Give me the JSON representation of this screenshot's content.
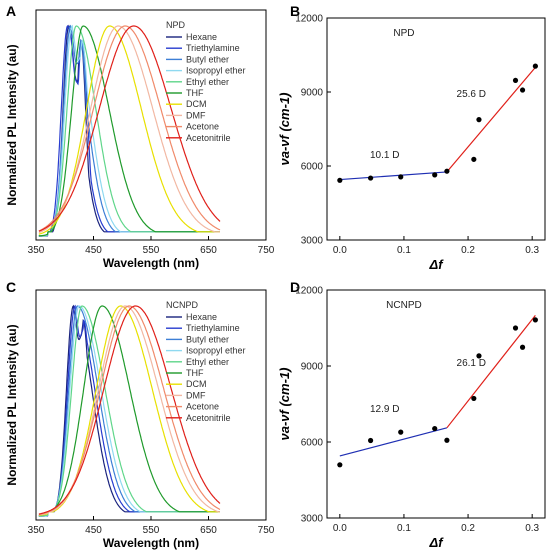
{
  "chart_data": [
    {
      "type": "line",
      "panel": "A",
      "title": "",
      "xlabel": "Wavelength (nm)",
      "ylabel": "Normalized PL Intensity (au)",
      "xlim": [
        350,
        750
      ],
      "xticks": [
        "350",
        "450",
        "550",
        "650",
        "750"
      ],
      "legend_title": "NPD",
      "legend_position": "top-right",
      "series": [
        {
          "name": "Hexane",
          "color": "#1a237e",
          "peak": 407,
          "peak2": 428,
          "w_left": 10,
          "w_right": 22,
          "y_start": 0.02,
          "x_end": 670
        },
        {
          "name": "Triethylamine",
          "color": "#283ccf",
          "peak": 405,
          "peak2": 430,
          "w_left": 11,
          "w_right": 25,
          "y_start": 0.02,
          "x_end": 670
        },
        {
          "name": "Butyl ether",
          "color": "#3d7fd6",
          "peak": 410,
          "peak2": 428,
          "w_left": 12,
          "w_right": 28,
          "y_start": 0.02,
          "x_end": 670
        },
        {
          "name": "Isopropyl ether",
          "color": "#8fd9f0",
          "peak": 413,
          "peak2": 430,
          "w_left": 13,
          "w_right": 30,
          "y_start": 0.02,
          "x_end": 670
        },
        {
          "name": "Ethyl ether",
          "color": "#5fd68a",
          "peak": 420,
          "peak2": 0,
          "w_left": 16,
          "w_right": 34,
          "y_start": 0.02,
          "x_end": 670
        },
        {
          "name": "THF",
          "color": "#1f9a2b",
          "peak": 432,
          "peak2": 0,
          "w_left": 20,
          "w_right": 45,
          "y_start": 0.02,
          "x_end": 670
        },
        {
          "name": "DCM",
          "color": "#e8e000",
          "peak": 478,
          "peak2": 0,
          "w_left": 40,
          "w_right": 55,
          "y_start": 0.02,
          "x_end": 670
        },
        {
          "name": "DMF",
          "color": "#f2b8a3",
          "peak": 493,
          "peak2": 0,
          "w_left": 48,
          "w_right": 60,
          "y_start": 0.02,
          "x_end": 670
        },
        {
          "name": "Acetone",
          "color": "#f08a6a",
          "peak": 505,
          "peak2": 0,
          "w_left": 55,
          "w_right": 62,
          "y_start": 0.02,
          "x_end": 670
        },
        {
          "name": "Acetonitrile",
          "color": "#e0201a",
          "peak": 520,
          "peak2": 0,
          "w_left": 60,
          "w_right": 65,
          "y_start": 0.02,
          "x_end": 670
        }
      ]
    },
    {
      "type": "scatter",
      "panel": "B",
      "title": "",
      "inset_label": "NPD",
      "xlabel": "Δf",
      "ylabel": "νa-νf (cm-1)",
      "xlim": [
        -0.02,
        0.32
      ],
      "ylim": [
        3000,
        12000
      ],
      "xticks": [
        "0.0",
        "0.1",
        "0.2",
        "0.3"
      ],
      "yticks": [
        "3000",
        "6000",
        "9000",
        "12000"
      ],
      "points": [
        {
          "x": 0.0,
          "y": 5420
        },
        {
          "x": 0.048,
          "y": 5510
        },
        {
          "x": 0.095,
          "y": 5560
        },
        {
          "x": 0.148,
          "y": 5640
        },
        {
          "x": 0.167,
          "y": 5790
        },
        {
          "x": 0.209,
          "y": 6270
        },
        {
          "x": 0.217,
          "y": 7880
        },
        {
          "x": 0.274,
          "y": 9470
        },
        {
          "x": 0.285,
          "y": 9080
        },
        {
          "x": 0.305,
          "y": 10050
        }
      ],
      "fits": [
        {
          "label": "10.1 D",
          "color": "#1f2fb3",
          "x0": 0.0,
          "y0": 5450,
          "x1": 0.167,
          "y1": 5760
        },
        {
          "label": "25.6 D",
          "color": "#e0201a",
          "x0": 0.167,
          "y0": 5760,
          "x1": 0.305,
          "y1": 10000
        }
      ]
    },
    {
      "type": "line",
      "panel": "C",
      "title": "",
      "xlabel": "Wavelength (nm)",
      "ylabel": "Normalized PL Intensity (au)",
      "xlim": [
        350,
        750
      ],
      "xticks": [
        "350",
        "450",
        "550",
        "650",
        "750"
      ],
      "legend_title": "NCNPD",
      "legend_position": "top-right",
      "series": [
        {
          "name": "Hexane",
          "color": "#1a237e",
          "peak": 415,
          "peak2": 432,
          "w_left": 12,
          "w_right": 32,
          "y_start": 0.02,
          "x_end": 670
        },
        {
          "name": "Triethylamine",
          "color": "#283ccf",
          "peak": 418,
          "peak2": 433,
          "w_left": 13,
          "w_right": 34,
          "y_start": 0.02,
          "x_end": 670
        },
        {
          "name": "Butyl ether",
          "color": "#3d7fd6",
          "peak": 422,
          "peak2": 0,
          "w_left": 15,
          "w_right": 36,
          "y_start": 0.02,
          "x_end": 670
        },
        {
          "name": "Isopropyl ether",
          "color": "#8fd9f0",
          "peak": 425,
          "peak2": 0,
          "w_left": 16,
          "w_right": 38,
          "y_start": 0.02,
          "x_end": 670
        },
        {
          "name": "Ethyl ether",
          "color": "#5fd68a",
          "peak": 430,
          "peak2": 0,
          "w_left": 18,
          "w_right": 40,
          "y_start": 0.02,
          "x_end": 670
        },
        {
          "name": "THF",
          "color": "#1f9a2b",
          "peak": 465,
          "peak2": 0,
          "w_left": 32,
          "w_right": 48,
          "y_start": 0.02,
          "x_end": 670
        },
        {
          "name": "DCM",
          "color": "#e8e000",
          "peak": 497,
          "peak2": 0,
          "w_left": 42,
          "w_right": 55,
          "y_start": 0.02,
          "x_end": 670
        },
        {
          "name": "DMF",
          "color": "#f2b8a3",
          "peak": 505,
          "peak2": 0,
          "w_left": 46,
          "w_right": 58,
          "y_start": 0.02,
          "x_end": 670
        },
        {
          "name": "Acetone",
          "color": "#f08a6a",
          "peak": 512,
          "peak2": 0,
          "w_left": 50,
          "w_right": 60,
          "y_start": 0.02,
          "x_end": 670
        },
        {
          "name": "Acetonitrile",
          "color": "#e0201a",
          "peak": 523,
          "peak2": 0,
          "w_left": 55,
          "w_right": 62,
          "y_start": 0.02,
          "x_end": 670
        }
      ]
    },
    {
      "type": "scatter",
      "panel": "D",
      "title": "",
      "inset_label": "NCNPD",
      "xlabel": "Δf",
      "ylabel": "νa-νf (cm-1)",
      "xlim": [
        -0.02,
        0.32
      ],
      "ylim": [
        3000,
        12000
      ],
      "xticks": [
        "0.0",
        "0.1",
        "0.2",
        "0.3"
      ],
      "yticks": [
        "3000",
        "6000",
        "9000",
        "12000"
      ],
      "points": [
        {
          "x": 0.0,
          "y": 5100
        },
        {
          "x": 0.048,
          "y": 6060
        },
        {
          "x": 0.095,
          "y": 6390
        },
        {
          "x": 0.148,
          "y": 6530
        },
        {
          "x": 0.167,
          "y": 6070
        },
        {
          "x": 0.209,
          "y": 7720
        },
        {
          "x": 0.217,
          "y": 9400
        },
        {
          "x": 0.274,
          "y": 10500
        },
        {
          "x": 0.285,
          "y": 9740
        },
        {
          "x": 0.305,
          "y": 10820
        }
      ],
      "fits": [
        {
          "label": "12.9 D",
          "color": "#1f2fb3",
          "x0": 0.0,
          "y0": 5450,
          "x1": 0.167,
          "y1": 6560
        },
        {
          "label": "26.1 D",
          "color": "#e0201a",
          "x0": 0.167,
          "y0": 6560,
          "x1": 0.305,
          "y1": 11000
        }
      ]
    }
  ]
}
